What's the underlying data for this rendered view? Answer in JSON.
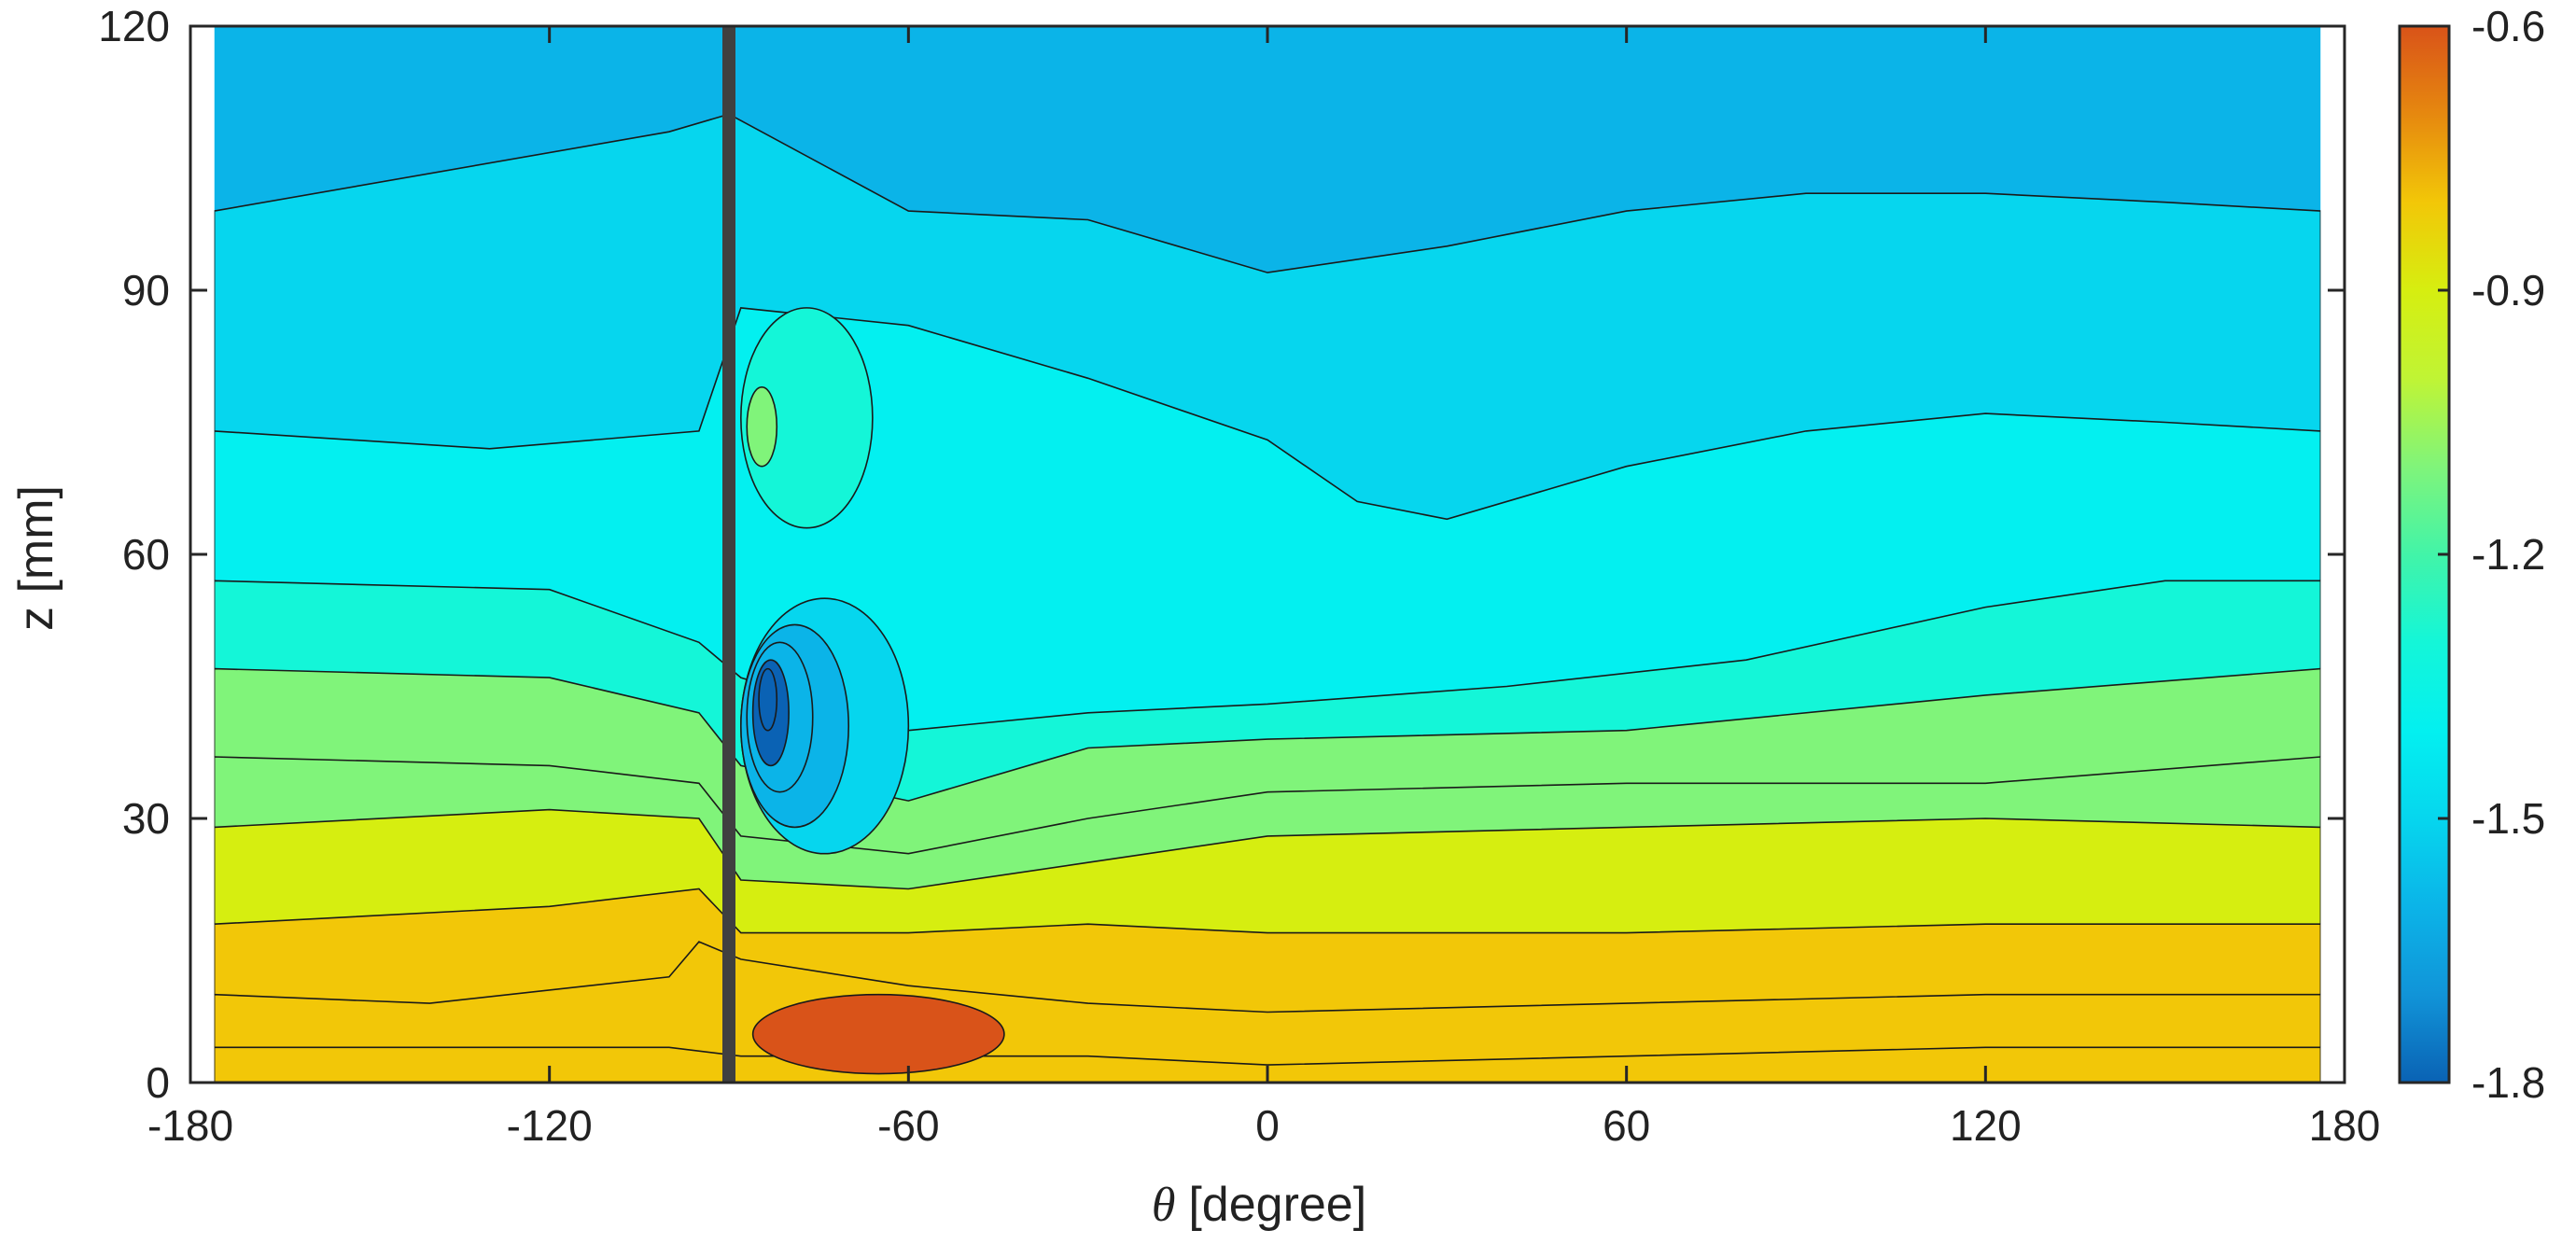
{
  "chart_data": {
    "type": "heatmap",
    "subtype": "filled-contour",
    "title": "",
    "xlabel": "θ [degree]",
    "xlabel_var": "θ",
    "xlabel_unit": "[degree]",
    "ylabel": "z [mm]",
    "xlim": [
      -180,
      180
    ],
    "ylim": [
      0,
      120
    ],
    "xticks": [
      -180,
      -120,
      -60,
      0,
      60,
      120,
      180
    ],
    "xtick_labels": [
      "-180",
      "-120",
      "-60",
      "0",
      "60",
      "120",
      "180"
    ],
    "yticks": [
      0,
      30,
      60,
      90,
      120
    ],
    "ytick_labels": [
      "0",
      "30",
      "60",
      "90",
      "120"
    ],
    "data_x_range": [
      -176,
      176
    ],
    "colorbar": {
      "range": [
        -1.8,
        -0.6
      ],
      "ticks": [
        -0.6,
        -0.9,
        -1.2,
        -1.5,
        -1.8
      ],
      "tick_labels": [
        "-0.6",
        "-0.9",
        "-1.2",
        "-1.5",
        "-1.8"
      ],
      "placement": "right",
      "colormap": "turbo"
    },
    "contour_levels": [
      -1.8,
      -1.7,
      -1.6,
      -1.5,
      -1.4,
      -1.3,
      -1.2,
      -1.1,
      -1.0,
      -0.9,
      -0.8,
      -0.7,
      -0.6
    ],
    "level_colors": [
      "#0a62b4",
      "#1194d8",
      "#0bb4e8",
      "#06d6ee",
      "#03f0f0",
      "#14f6d8",
      "#42f4a8",
      "#80f47a",
      "#c0f434",
      "#d6ee10",
      "#f2c708",
      "#e6880f",
      "#d95319"
    ],
    "cylinder_marker": {
      "x": -90
    },
    "field_bands": [
      {
        "level": -1.5,
        "y_at": [
          [
            -176,
            99
          ],
          [
            -100,
            108
          ],
          [
            -90,
            110
          ],
          [
            -60,
            99
          ],
          [
            -30,
            98
          ],
          [
            0,
            92
          ],
          [
            30,
            95
          ],
          [
            60,
            99
          ],
          [
            90,
            101
          ],
          [
            120,
            101
          ],
          [
            150,
            100
          ],
          [
            176,
            99
          ]
        ]
      },
      {
        "level": -1.4,
        "y_at": [
          [
            -176,
            74
          ],
          [
            -130,
            72
          ],
          [
            -95,
            74
          ],
          [
            -88,
            88
          ],
          [
            -60,
            86
          ],
          [
            -30,
            80
          ],
          [
            0,
            73
          ],
          [
            15,
            66
          ],
          [
            30,
            64
          ],
          [
            60,
            70
          ],
          [
            90,
            74
          ],
          [
            120,
            76
          ],
          [
            150,
            75
          ],
          [
            176,
            74
          ]
        ]
      },
      {
        "level": -1.3,
        "y_at": [
          [
            -176,
            57
          ],
          [
            -120,
            56
          ],
          [
            -95,
            50
          ],
          [
            -88,
            46
          ],
          [
            -60,
            40
          ],
          [
            -30,
            42
          ],
          [
            0,
            43
          ],
          [
            40,
            45
          ],
          [
            80,
            48
          ],
          [
            120,
            54
          ],
          [
            150,
            57
          ],
          [
            176,
            57
          ]
        ]
      },
      {
        "level": -1.2,
        "y_at": [
          [
            -176,
            47
          ],
          [
            -120,
            46
          ],
          [
            -95,
            42
          ],
          [
            -88,
            36
          ],
          [
            -60,
            32
          ],
          [
            -30,
            38
          ],
          [
            0,
            39
          ],
          [
            60,
            40
          ],
          [
            120,
            44
          ],
          [
            176,
            47
          ]
        ]
      },
      {
        "level": -1.1,
        "y_at": [
          [
            -176,
            37
          ],
          [
            -120,
            36
          ],
          [
            -95,
            34
          ],
          [
            -88,
            28
          ],
          [
            -60,
            26
          ],
          [
            -30,
            30
          ],
          [
            0,
            33
          ],
          [
            60,
            34
          ],
          [
            120,
            34
          ],
          [
            176,
            37
          ]
        ]
      },
      {
        "level": -1.0,
        "y_at": [
          [
            -176,
            29
          ],
          [
            -120,
            31
          ],
          [
            -95,
            30
          ],
          [
            -88,
            23
          ],
          [
            -60,
            22
          ],
          [
            -30,
            25
          ],
          [
            0,
            28
          ],
          [
            60,
            29
          ],
          [
            120,
            30
          ],
          [
            176,
            29
          ]
        ]
      },
      {
        "level": -0.9,
        "y_at": [
          [
            -176,
            18
          ],
          [
            -120,
            20
          ],
          [
            -95,
            22
          ],
          [
            -88,
            17
          ],
          [
            -60,
            17
          ],
          [
            -30,
            18
          ],
          [
            0,
            17
          ],
          [
            60,
            17
          ],
          [
            120,
            18
          ],
          [
            176,
            18
          ]
        ]
      },
      {
        "level": -0.8,
        "y_at": [
          [
            -176,
            10
          ],
          [
            -140,
            9
          ],
          [
            -100,
            12
          ],
          [
            -95,
            16
          ],
          [
            -88,
            14
          ],
          [
            -60,
            11
          ],
          [
            -30,
            9
          ],
          [
            0,
            8
          ],
          [
            60,
            9
          ],
          [
            120,
            10
          ],
          [
            176,
            10
          ]
        ]
      },
      {
        "level": -0.7,
        "y_at": [
          [
            -176,
            4
          ],
          [
            -140,
            4
          ],
          [
            -100,
            4
          ],
          [
            -88,
            3
          ],
          [
            -60,
            3
          ],
          [
            -30,
            3
          ],
          [
            0,
            2
          ],
          [
            60,
            3
          ],
          [
            120,
            4
          ],
          [
            176,
            4
          ]
        ]
      }
    ],
    "local_features": [
      {
        "kind": "low-pressure-core",
        "center": [
          -83,
          45
        ],
        "levels": [
          -1.4,
          -1.5,
          -1.6,
          -1.7,
          -1.8
        ],
        "extent_x": [
          [
            -88,
            -60
          ],
          [
            -88,
            -70
          ],
          [
            -87,
            -76
          ],
          [
            -86,
            -80
          ],
          [
            -85,
            -82
          ]
        ],
        "extent_y": [
          [
            26,
            55
          ],
          [
            29,
            52
          ],
          [
            33,
            50
          ],
          [
            36,
            48
          ],
          [
            40,
            47
          ]
        ]
      },
      {
        "kind": "green-pocket",
        "center": [
          -80,
          74
        ],
        "levels": [
          -1.3,
          -1.2
        ],
        "extent_x": [
          [
            -88,
            -66
          ],
          [
            -87,
            -82
          ]
        ],
        "extent_y": [
          [
            63,
            88
          ],
          [
            70,
            79
          ]
        ]
      },
      {
        "kind": "orange-pocket",
        "center": [
          -70,
          5
        ],
        "levels": [
          -0.6
        ],
        "extent_x": [
          [
            -86,
            -44
          ]
        ],
        "extent_y": [
          [
            1,
            10
          ]
        ]
      }
    ]
  }
}
